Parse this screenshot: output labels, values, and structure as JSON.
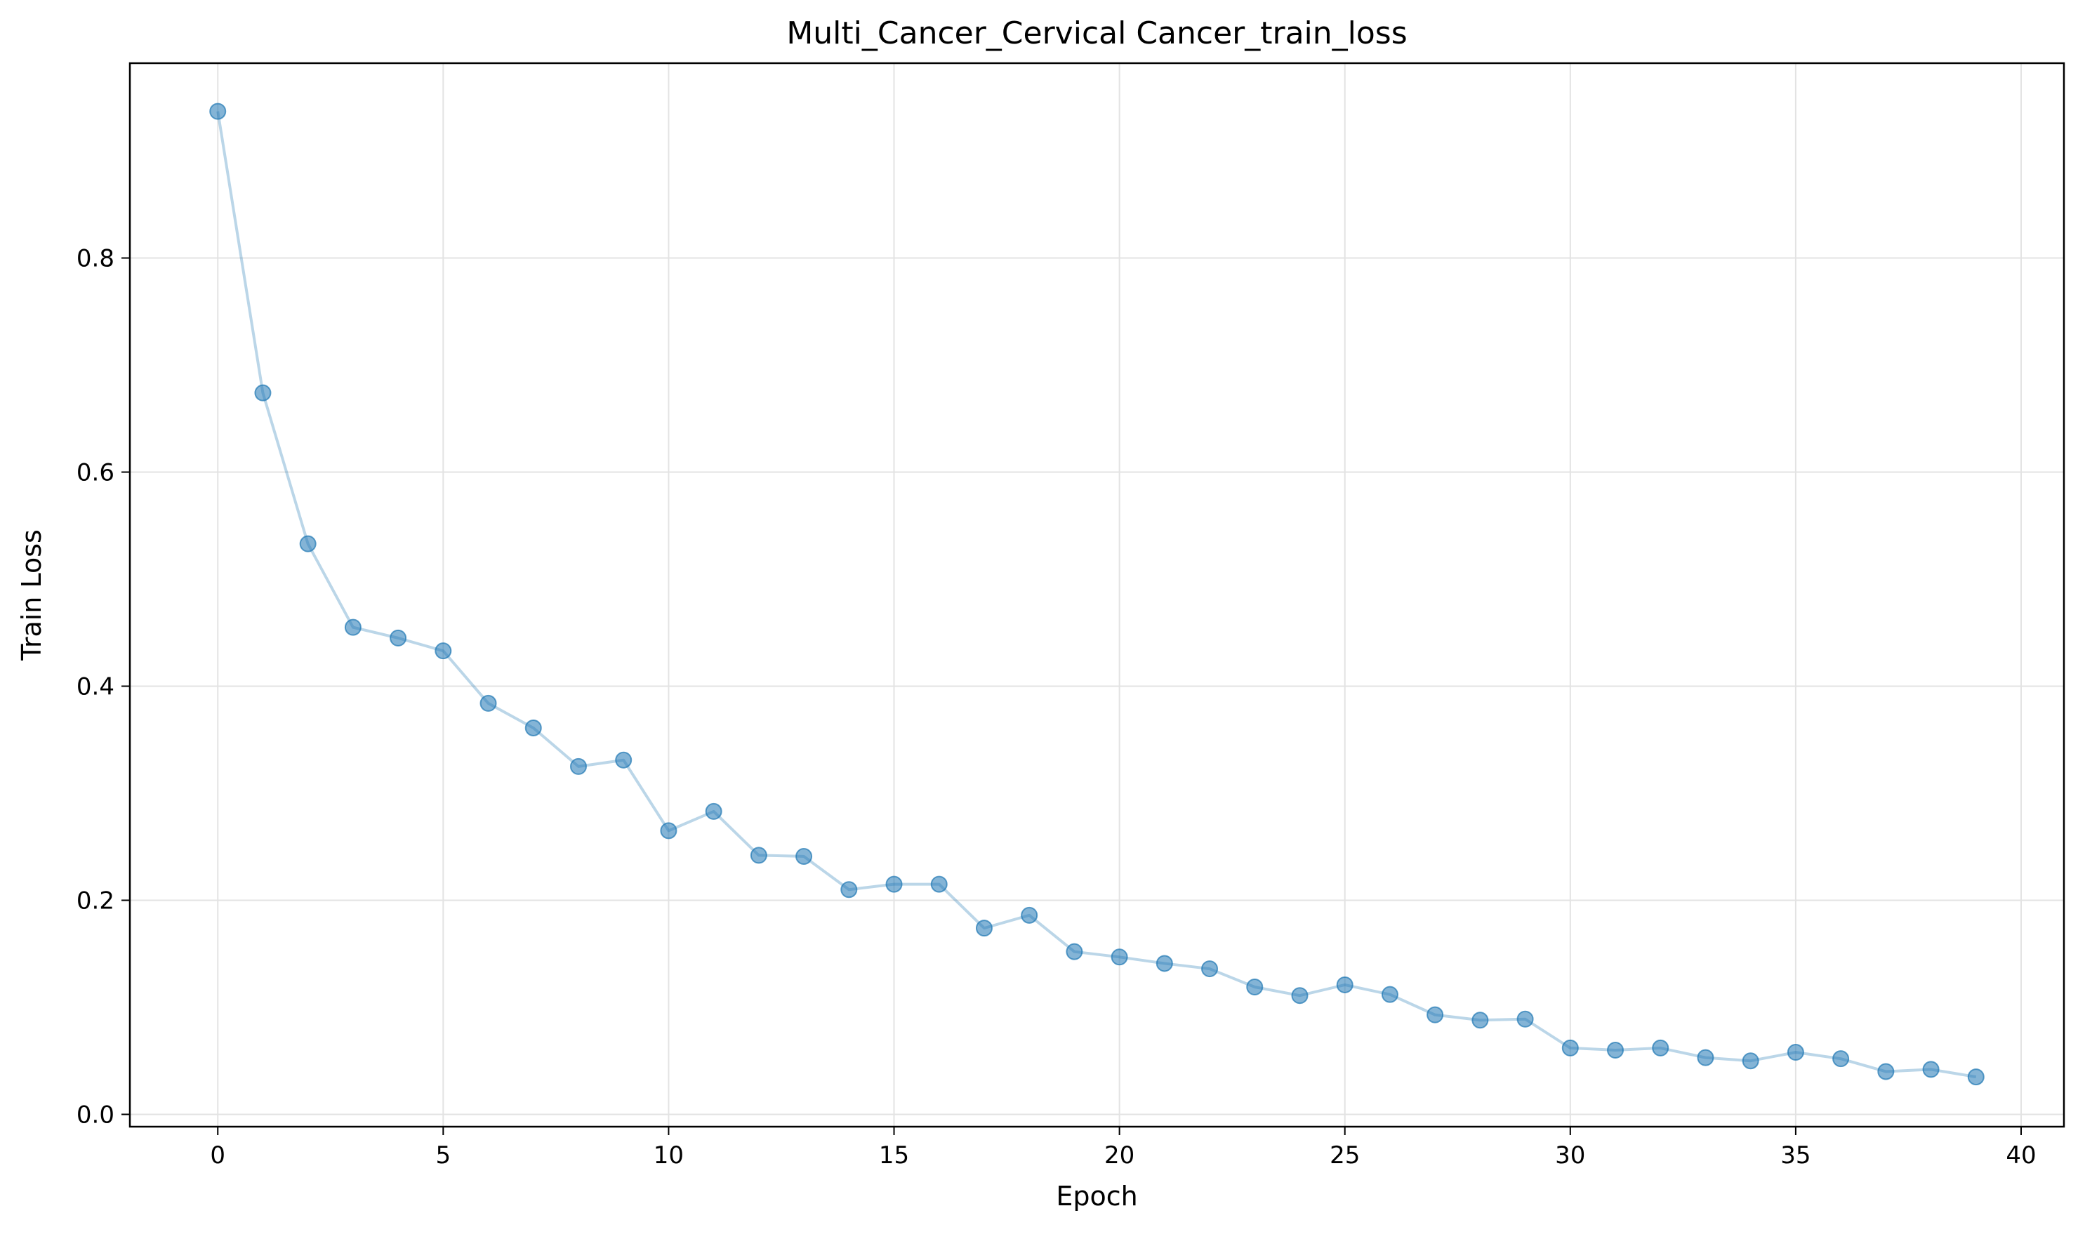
{
  "chart_data": {
    "type": "line",
    "title": "Multi_Cancer_Cervical Cancer_train_loss",
    "xlabel": "Epoch",
    "ylabel": "Train Loss",
    "xlim": [
      -1.95,
      40.95
    ],
    "ylim": [
      -0.0115,
      0.982
    ],
    "x_ticks": [
      0,
      5,
      10,
      15,
      20,
      25,
      30,
      35,
      40
    ],
    "y_ticks": [
      0.0,
      0.2,
      0.4,
      0.6,
      0.8
    ],
    "x_tick_labels": [
      "0",
      "5",
      "10",
      "15",
      "20",
      "25",
      "30",
      "35",
      "40"
    ],
    "y_tick_labels": [
      "0.0",
      "0.2",
      "0.4",
      "0.6",
      "0.8"
    ],
    "grid": true,
    "colors": {
      "line": "#1f77b4",
      "marker": "#1f77b4",
      "grid": "#e3e3e3",
      "axes": "#000000"
    },
    "series": [
      {
        "x": [
          0,
          1,
          2,
          3,
          4,
          5,
          6,
          7,
          8,
          9,
          10,
          11,
          12,
          13,
          14,
          15,
          16,
          17,
          18,
          19,
          20,
          21,
          22,
          23,
          24,
          25,
          26,
          27,
          28,
          29,
          30,
          31,
          32,
          33,
          34,
          35,
          36,
          37,
          38,
          39
        ],
        "values": [
          0.937,
          0.674,
          0.533,
          0.455,
          0.445,
          0.433,
          0.384,
          0.361,
          0.325,
          0.331,
          0.265,
          0.283,
          0.242,
          0.241,
          0.21,
          0.215,
          0.215,
          0.174,
          0.186,
          0.152,
          0.147,
          0.141,
          0.136,
          0.119,
          0.111,
          0.121,
          0.112,
          0.093,
          0.088,
          0.089,
          0.062,
          0.06,
          0.062,
          0.053,
          0.05,
          0.058,
          0.052,
          0.04,
          0.042,
          0.035
        ]
      }
    ]
  }
}
